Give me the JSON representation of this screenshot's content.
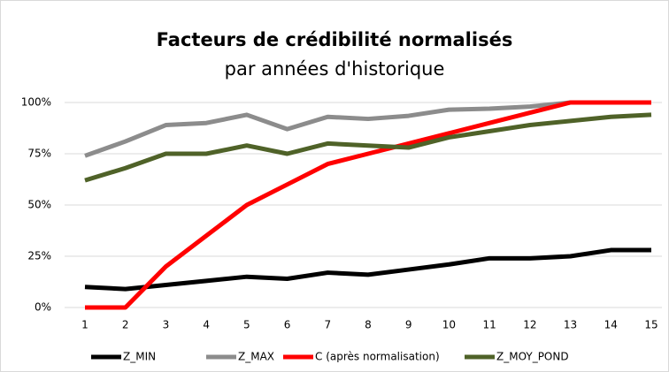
{
  "chart_data": {
    "type": "line",
    "title": "Facteurs de crédibilité normalisés",
    "subtitle": "par années d'historique",
    "categories": [
      "1",
      "2",
      "3",
      "4",
      "5",
      "6",
      "7",
      "8",
      "9",
      "10",
      "11",
      "12",
      "13",
      "14",
      "15"
    ],
    "series": [
      {
        "name": "Z_MIN",
        "color": "#000000",
        "values": [
          10,
          9,
          11,
          13,
          15,
          14,
          17,
          16,
          18.5,
          21,
          24,
          24,
          25,
          28,
          28
        ]
      },
      {
        "name": "Z_MAX",
        "color": "#8c8c8c",
        "values": [
          74,
          81,
          89,
          90,
          94,
          87,
          93,
          92,
          93.5,
          96.5,
          97,
          98,
          100,
          100,
          100
        ]
      },
      {
        "name": "C (après normalisation)",
        "color": "#ff0000",
        "values": [
          0,
          0,
          20,
          35,
          50,
          60,
          70,
          75,
          80,
          85,
          90,
          95,
          100,
          100,
          100
        ]
      },
      {
        "name": "Z_MOY_POND",
        "color": "#4f6228",
        "values": [
          62,
          68,
          75,
          75,
          79,
          75,
          80,
          79,
          78,
          83,
          86,
          89,
          91,
          93,
          94
        ]
      }
    ],
    "ylim": [
      0,
      100
    ],
    "yticks": [
      {
        "value": 0,
        "label": "0%"
      },
      {
        "value": 25,
        "label": "25%"
      },
      {
        "value": 50,
        "label": "50%"
      },
      {
        "value": 75,
        "label": "75%"
      },
      {
        "value": 100,
        "label": "100%"
      }
    ],
    "grid": true,
    "legend": "bottom"
  }
}
